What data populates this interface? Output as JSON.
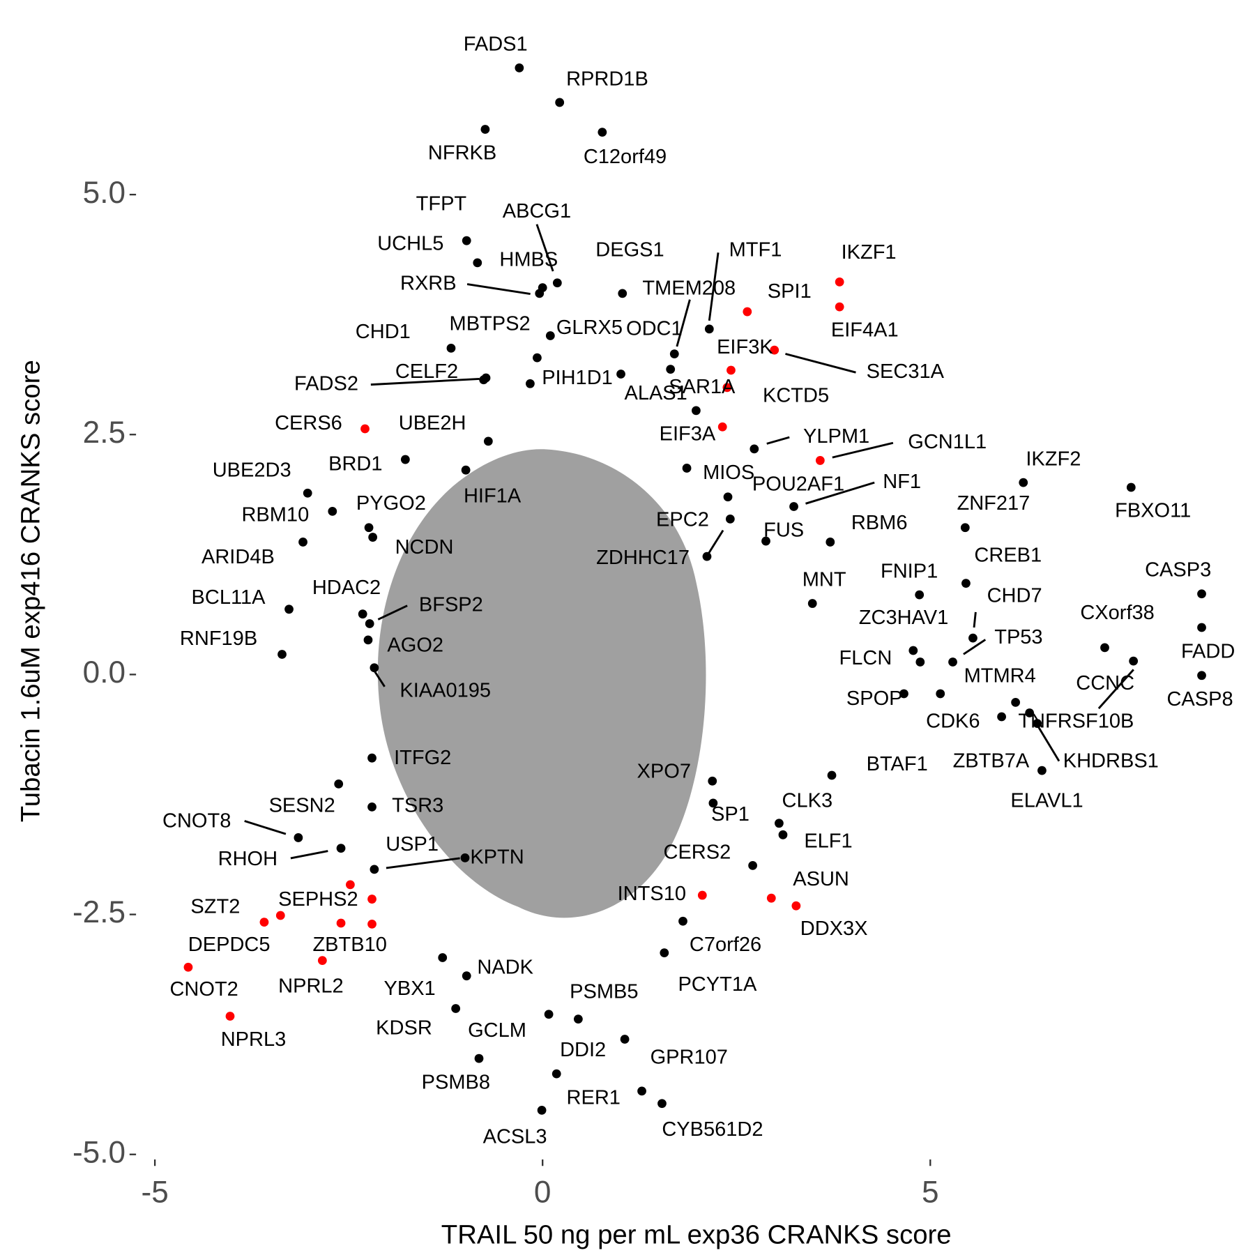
{
  "chart_data": {
    "type": "scatter",
    "x_label": "TRAIL 50 ng per mL exp36 CRANKS score",
    "y_label": "Tubacin 1.6uM exp416 CRANKS score",
    "xlim": [
      -5.17,
      8.77
    ],
    "ylim": [
      -5.12,
      6.69
    ],
    "xticks": [
      -5,
      0,
      5
    ],
    "yticks": [
      {
        "value": -5,
        "label": "-5.0"
      },
      {
        "value": -2.5,
        "label": "-2.5"
      },
      {
        "value": 0,
        "label": "0.0"
      },
      {
        "value": 2.5,
        "label": "2.5"
      },
      {
        "value": 5,
        "label": "5.0"
      }
    ],
    "grid": false,
    "series": [
      {
        "color": "#000000",
        "labels": [
          "FADS1",
          "RPRD1B",
          "NFRKB",
          "C12orf49",
          "TFPT",
          "UCHL5",
          "ABCG1",
          "HMBS",
          "RXRB",
          "DEGS1",
          "MTF1",
          "TMEM208",
          "CHD1",
          "MBTPS2",
          "GLRX5",
          "ODC1",
          "CELF2",
          "FADS2",
          "PIH1D1",
          "ALAS1",
          "KCTD5",
          "UBE2H",
          "YLPM1",
          "IKZF2",
          "FBXO11",
          "UBE2D3",
          "BRD1",
          "MIOS",
          "POU2AF1",
          "NF1",
          "ZNF217",
          "RBM10",
          "PYGO2",
          "HIF1A",
          "EPC2",
          "FUS",
          "RBM6",
          "ARID4B",
          "NCDN",
          "ZDHHC17",
          "CREB1",
          "CASP3",
          "FNIP1",
          "MNT",
          "BCL11A",
          "HDAC2",
          "BFSP2",
          "CHD7",
          "ZC3HAV1",
          "CXorf38",
          "FADD",
          "RNF19B",
          "AGO2",
          "TP53",
          "FLCN",
          "MTMR4",
          "CCNC",
          "CASP8",
          "KIAA0195",
          "SPOP",
          "CDK6",
          "TNFRSF10B",
          "KHDRBS1",
          "ZBTB7A",
          "ELAVL1",
          "BTAF1",
          "ITFG2",
          "XPO7",
          "SESN2",
          "TSR3",
          "CLK3",
          "ELF1",
          "SP1",
          "CNOT8",
          "RHOH",
          "USP1",
          "KPTN",
          "CERS2",
          "C7orf26",
          "PCYT1A",
          "NADK",
          "YBX1",
          "PSMB5",
          "KDSR",
          "GCLM",
          "DDI2",
          "GPR107",
          "PSMB8",
          "RER1",
          "ACSL3",
          "CYB561D2"
        ],
        "x": [
          -0.3,
          0.22,
          -0.74,
          0.77,
          -0.98,
          -0.84,
          0.19,
          0.0,
          -0.04,
          1.03,
          2.15,
          1.7,
          -1.18,
          -0.07,
          0.1,
          1.65,
          -0.76,
          -0.73,
          -0.16,
          1.01,
          1.98,
          -0.7,
          2.73,
          6.2,
          7.59,
          -3.03,
          -1.77,
          1.86,
          2.39,
          3.24,
          5.45,
          -2.71,
          -2.24,
          -0.99,
          2.42,
          2.88,
          3.71,
          -3.09,
          -2.19,
          2.12,
          5.46,
          8.5,
          4.86,
          3.48,
          -3.27,
          -2.32,
          -2.23,
          5.55,
          4.87,
          7.25,
          8.5,
          -3.36,
          -2.25,
          5.29,
          4.78,
          6.1,
          7.62,
          8.5,
          -2.17,
          4.66,
          5.13,
          6.28,
          6.38,
          5.92,
          6.44,
          3.73,
          -2.2,
          2.19,
          -2.63,
          -2.2,
          3.05,
          3.1,
          2.2,
          -3.15,
          -2.6,
          -2.17,
          -1.0,
          2.71,
          1.81,
          1.57,
          -0.98,
          -1.29,
          0.46,
          -1.12,
          0.08,
          0.18,
          1.06,
          -0.82,
          1.28,
          -0.01,
          1.54
        ],
        "y": [
          6.32,
          5.96,
          5.68,
          5.65,
          4.52,
          4.29,
          4.08,
          4.03,
          3.97,
          3.97,
          3.6,
          3.34,
          3.4,
          3.3,
          3.53,
          3.18,
          3.07,
          3.09,
          3.03,
          3.13,
          2.75,
          2.43,
          2.35,
          2.0,
          1.95,
          1.89,
          2.24,
          2.15,
          1.85,
          1.75,
          1.53,
          1.7,
          1.53,
          2.13,
          1.62,
          1.39,
          1.38,
          1.38,
          1.43,
          1.23,
          0.95,
          0.84,
          0.83,
          0.74,
          0.68,
          0.63,
          0.53,
          0.38,
          0.13,
          0.28,
          0.49,
          0.21,
          0.36,
          0.13,
          0.25,
          -0.29,
          0.14,
          -0.01,
          0.07,
          -0.2,
          -0.2,
          -0.4,
          -0.51,
          -0.44,
          -1.0,
          -1.05,
          -0.87,
          -1.11,
          -1.14,
          -1.38,
          -1.55,
          -1.67,
          -1.34,
          -1.7,
          -1.81,
          -2.03,
          -1.91,
          -1.99,
          -2.57,
          -2.9,
          -3.14,
          -2.95,
          -3.59,
          -3.48,
          -3.54,
          -4.16,
          -3.8,
          -4.0,
          -4.34,
          -4.54,
          -4.47
        ]
      },
      {
        "color": "#ff0000",
        "labels": [
          "IKZF1",
          "SPI1",
          "EIF4A1",
          "EIF3K",
          "SEC31A",
          "SAR1A",
          "CERS6",
          "EIF3A",
          "GCN1L1",
          "ASUN",
          "INTS10",
          "DDX3X",
          "SZT2",
          "SEPHS2",
          "DEPDC5",
          "ZBTB10",
          "NPRL2",
          "CNOT2",
          "NPRL3",
          null,
          null
        ],
        "x": [
          3.83,
          2.64,
          3.83,
          2.43,
          2.99,
          2.38,
          -2.29,
          2.32,
          3.58,
          2.95,
          2.06,
          3.27,
          -3.59,
          -2.48,
          -3.38,
          -2.6,
          -2.84,
          -4.57,
          -4.03,
          -2.2,
          -2.2
        ],
        "y": [
          4.09,
          3.78,
          3.83,
          3.17,
          3.38,
          2.99,
          2.56,
          2.58,
          2.23,
          -2.33,
          -2.3,
          -2.41,
          -2.58,
          -2.19,
          -2.51,
          -2.59,
          -2.98,
          -3.05,
          -3.56,
          -2.34,
          -2.6
        ]
      }
    ]
  }
}
